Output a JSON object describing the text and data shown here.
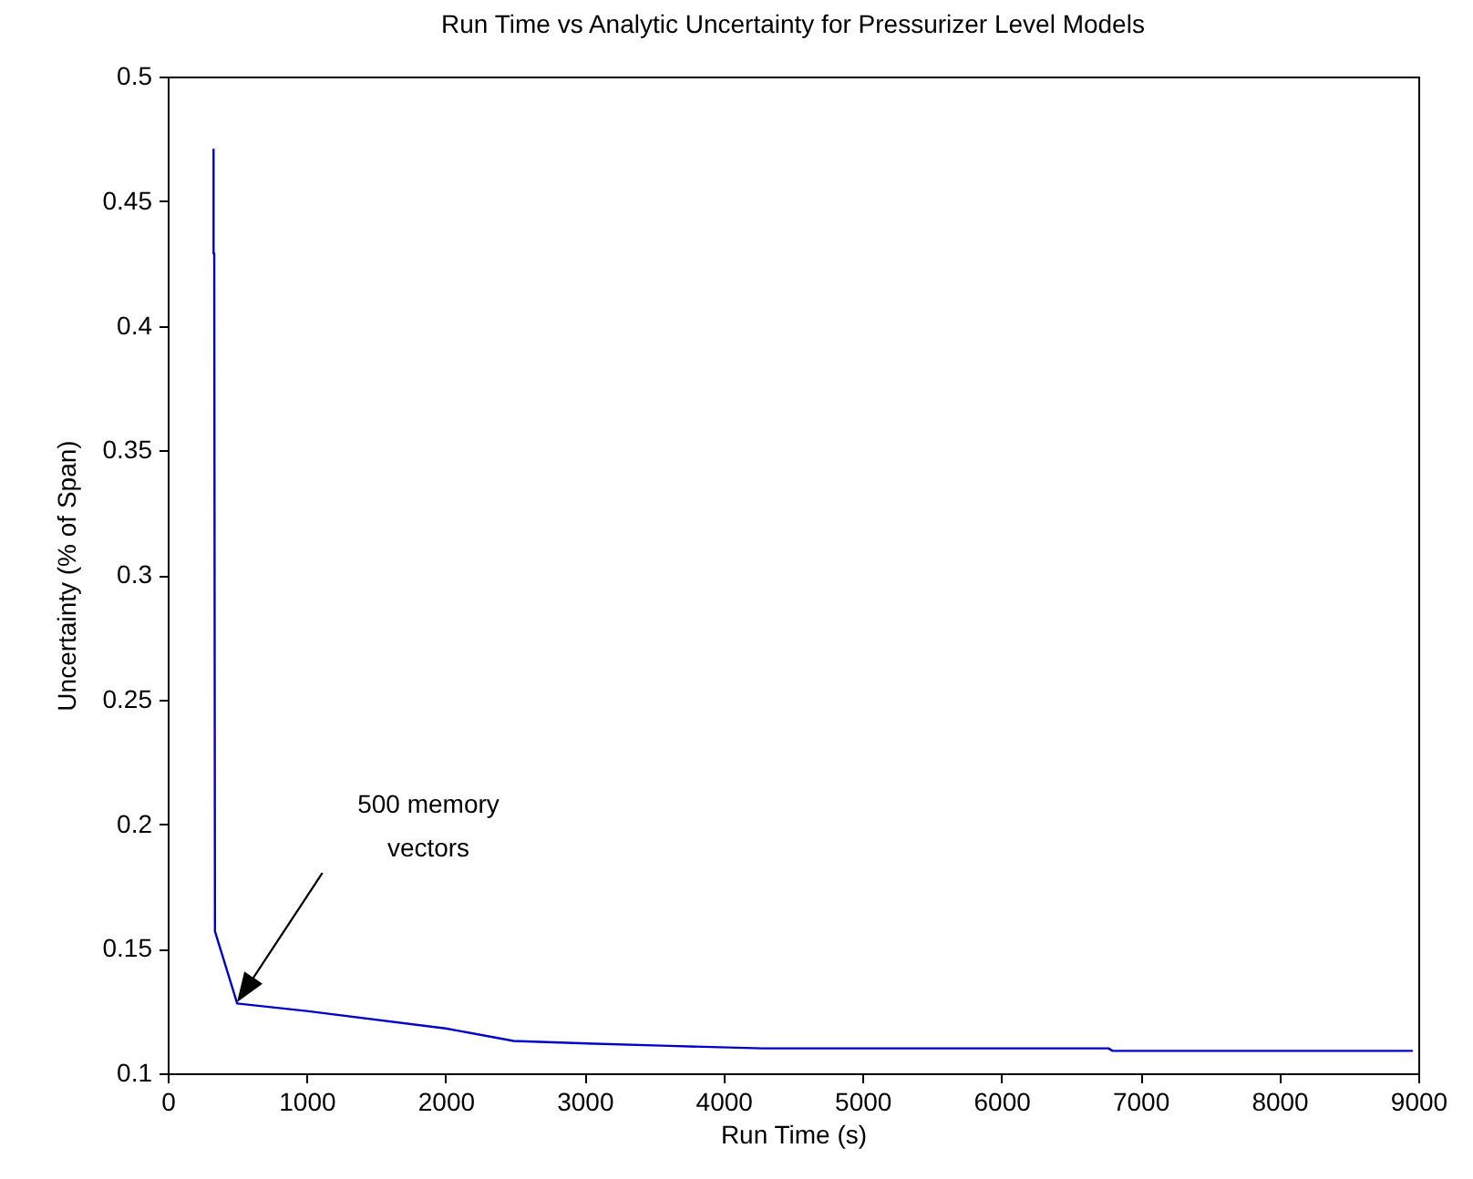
{
  "chart_data": {
    "type": "line",
    "title": "Run Time vs Analytic Uncertainty for Pressurizer Level Models",
    "xlabel": "Run Time (s)",
    "ylabel": "Uncertainty (% of Span)",
    "x": [
      330,
      330,
      335,
      340,
      500,
      1000,
      2000,
      2490,
      3020,
      3610,
      4280,
      6770,
      6800,
      8960
    ],
    "series": [
      {
        "color": "#0000cc",
        "values": [
          0.471,
          0.429,
          0.429,
          0.157,
          0.128,
          0.125,
          0.118,
          0.113,
          0.112,
          0.111,
          0.11,
          0.11,
          0.109,
          0.109
        ]
      }
    ],
    "xlim": [
      0,
      9000
    ],
    "xticks": [
      0,
      1000,
      2000,
      3000,
      4000,
      5000,
      6000,
      7000,
      8000,
      9000
    ],
    "ylim": [
      0.1,
      0.5
    ],
    "yticks": [
      0.1,
      0.15,
      0.2,
      0.25,
      0.3,
      0.35,
      0.4,
      0.45,
      0.5
    ],
    "annotations": [
      "500 memory\nvectors"
    ],
    "grid": false,
    "legend": false,
    "marker": "none",
    "line_style": "solid"
  }
}
